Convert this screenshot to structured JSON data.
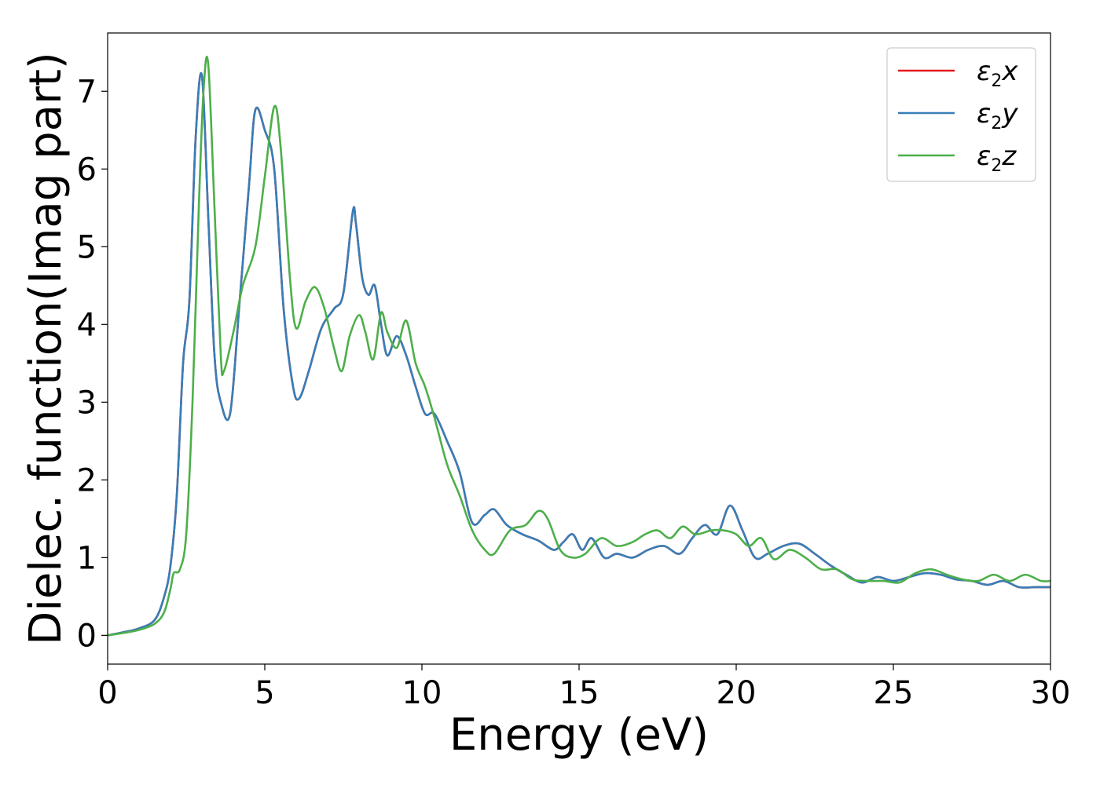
{
  "chart_data": {
    "type": "line",
    "xlabel": "Energy (eV)",
    "ylabel": "Dielec. function(Imag part)",
    "xlim": [
      0,
      30
    ],
    "ylim": [
      -0.37,
      7.75
    ],
    "xticks": [
      0,
      5,
      10,
      15,
      20,
      25,
      30
    ],
    "yticks": [
      0,
      1,
      2,
      3,
      4,
      5,
      6,
      7
    ],
    "grid": false,
    "legend_position": "top-right",
    "series": [
      {
        "name": "x",
        "color": "#e41a1c",
        "x": [
          0,
          0.5,
          1.0,
          1.5,
          1.8,
          2.0,
          2.2,
          2.4,
          2.6,
          2.8,
          3.0,
          3.2,
          3.4,
          3.6,
          3.9,
          4.2,
          4.5,
          4.7,
          5.0,
          5.3,
          5.6,
          5.9,
          6.1,
          6.4,
          6.8,
          7.2,
          7.5,
          7.8,
          7.9,
          8.1,
          8.3,
          8.5,
          8.7,
          8.9,
          9.2,
          9.5,
          9.8,
          10.1,
          10.4,
          10.8,
          11.2,
          11.6,
          12.0,
          12.3,
          12.7,
          13.2,
          13.7,
          14.2,
          14.5,
          14.8,
          15.1,
          15.4,
          15.8,
          16.2,
          16.7,
          17.2,
          17.7,
          18.2,
          18.6,
          19.0,
          19.4,
          19.8,
          20.2,
          20.6,
          21.0,
          21.5,
          22.0,
          22.5,
          23.0,
          23.5,
          24.0,
          24.5,
          25.0,
          25.5,
          26.0,
          26.5,
          27.0,
          27.5,
          28.0,
          28.5,
          29.0,
          29.5,
          30.0
        ],
        "y": [
          0.0,
          0.04,
          0.09,
          0.2,
          0.5,
          0.9,
          1.8,
          3.5,
          4.3,
          6.4,
          7.2,
          5.4,
          3.6,
          3.0,
          2.86,
          4.3,
          5.8,
          6.76,
          6.5,
          6.0,
          4.2,
          3.2,
          3.05,
          3.4,
          3.95,
          4.2,
          4.4,
          5.45,
          5.3,
          4.6,
          4.38,
          4.5,
          4.0,
          3.6,
          3.85,
          3.6,
          3.2,
          2.85,
          2.85,
          2.5,
          2.1,
          1.45,
          1.55,
          1.62,
          1.42,
          1.3,
          1.22,
          1.1,
          1.2,
          1.3,
          1.1,
          1.25,
          1.0,
          1.05,
          1.0,
          1.1,
          1.15,
          1.05,
          1.25,
          1.42,
          1.3,
          1.67,
          1.35,
          1.0,
          1.05,
          1.15,
          1.18,
          1.05,
          0.9,
          0.78,
          0.68,
          0.75,
          0.7,
          0.75,
          0.8,
          0.78,
          0.72,
          0.7,
          0.65,
          0.7,
          0.62,
          0.62,
          0.62
        ]
      },
      {
        "name": "y",
        "color": "#377eb8",
        "x": [
          0,
          0.5,
          1.0,
          1.5,
          1.8,
          2.0,
          2.2,
          2.4,
          2.6,
          2.8,
          3.0,
          3.2,
          3.4,
          3.6,
          3.9,
          4.2,
          4.5,
          4.7,
          5.0,
          5.3,
          5.6,
          5.9,
          6.1,
          6.4,
          6.8,
          7.2,
          7.5,
          7.8,
          7.9,
          8.1,
          8.3,
          8.5,
          8.7,
          8.9,
          9.2,
          9.5,
          9.8,
          10.1,
          10.4,
          10.8,
          11.2,
          11.6,
          12.0,
          12.3,
          12.7,
          13.2,
          13.7,
          14.2,
          14.5,
          14.8,
          15.1,
          15.4,
          15.8,
          16.2,
          16.7,
          17.2,
          17.7,
          18.2,
          18.6,
          19.0,
          19.4,
          19.8,
          20.2,
          20.6,
          21.0,
          21.5,
          22.0,
          22.5,
          23.0,
          23.5,
          24.0,
          24.5,
          25.0,
          25.5,
          26.0,
          26.5,
          27.0,
          27.5,
          28.0,
          28.5,
          29.0,
          29.5,
          30.0
        ],
        "y": [
          0.0,
          0.04,
          0.09,
          0.2,
          0.5,
          0.9,
          1.8,
          3.5,
          4.3,
          6.4,
          7.2,
          5.4,
          3.6,
          3.0,
          2.86,
          4.3,
          5.8,
          6.76,
          6.5,
          6.0,
          4.2,
          3.2,
          3.05,
          3.4,
          3.95,
          4.2,
          4.4,
          5.45,
          5.3,
          4.6,
          4.38,
          4.5,
          4.0,
          3.6,
          3.85,
          3.6,
          3.2,
          2.85,
          2.85,
          2.5,
          2.1,
          1.45,
          1.55,
          1.62,
          1.42,
          1.3,
          1.22,
          1.1,
          1.2,
          1.3,
          1.1,
          1.25,
          1.0,
          1.05,
          1.0,
          1.1,
          1.15,
          1.05,
          1.25,
          1.42,
          1.3,
          1.67,
          1.35,
          1.0,
          1.05,
          1.15,
          1.18,
          1.05,
          0.9,
          0.78,
          0.68,
          0.75,
          0.7,
          0.75,
          0.8,
          0.78,
          0.72,
          0.7,
          0.65,
          0.7,
          0.62,
          0.62,
          0.62
        ]
      },
      {
        "name": "z",
        "color": "#4daf4a",
        "x": [
          0,
          0.5,
          1.0,
          1.5,
          1.8,
          2.0,
          2.1,
          2.3,
          2.5,
          2.7,
          2.9,
          3.05,
          3.2,
          3.4,
          3.6,
          3.7,
          4.0,
          4.3,
          4.7,
          5.0,
          5.3,
          5.5,
          5.8,
          6.0,
          6.3,
          6.6,
          6.9,
          7.2,
          7.45,
          7.7,
          8.0,
          8.2,
          8.45,
          8.7,
          8.9,
          9.2,
          9.5,
          9.8,
          10.1,
          10.4,
          10.8,
          11.2,
          11.6,
          12.0,
          12.3,
          12.8,
          13.3,
          13.7,
          14.0,
          14.4,
          14.8,
          15.2,
          15.7,
          16.2,
          16.7,
          17.1,
          17.5,
          17.9,
          18.3,
          18.7,
          19.2,
          19.6,
          20.0,
          20.4,
          20.8,
          21.2,
          21.7,
          22.2,
          22.7,
          23.2,
          23.7,
          24.2,
          24.7,
          25.2,
          25.7,
          26.2,
          26.7,
          27.2,
          27.7,
          28.2,
          28.7,
          29.2,
          29.7,
          30.0
        ],
        "y": [
          0.0,
          0.03,
          0.07,
          0.15,
          0.3,
          0.6,
          0.8,
          0.85,
          1.3,
          3.0,
          5.5,
          7.0,
          7.35,
          5.5,
          3.6,
          3.4,
          3.9,
          4.5,
          5.0,
          5.9,
          6.8,
          6.3,
          4.6,
          3.95,
          4.3,
          4.48,
          4.2,
          3.7,
          3.4,
          3.85,
          4.12,
          3.9,
          3.55,
          4.15,
          3.9,
          3.7,
          4.05,
          3.5,
          3.2,
          2.8,
          2.2,
          1.8,
          1.35,
          1.1,
          1.05,
          1.35,
          1.42,
          1.6,
          1.5,
          1.1,
          1.0,
          1.05,
          1.25,
          1.15,
          1.2,
          1.3,
          1.35,
          1.25,
          1.4,
          1.3,
          1.35,
          1.35,
          1.3,
          1.15,
          1.25,
          0.98,
          1.1,
          1.0,
          0.85,
          0.85,
          0.72,
          0.7,
          0.7,
          0.68,
          0.8,
          0.85,
          0.78,
          0.72,
          0.7,
          0.78,
          0.7,
          0.78,
          0.7,
          0.7
        ]
      }
    ]
  }
}
